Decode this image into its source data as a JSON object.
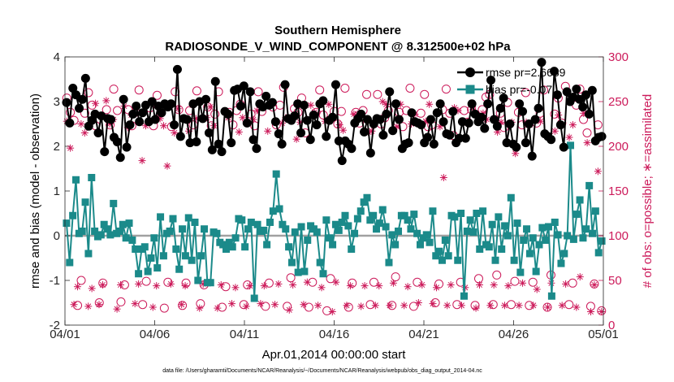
{
  "chart_data": {
    "type": "line",
    "title": "Southern Hemisphere",
    "subtitle": "RADIOSONDE_V_WIND_COMPONENT @ 8.312500e+02 hPa",
    "xlabel": "Apr.01,2014 00:00:00 start",
    "ylabel_left": "rmse and bias (model - observation)",
    "ylabel_right": "# of obs: o=possible; ∗=assimilated",
    "footnote": "data file: /Users/gharamti/Documents/NCAR/Reanalysis/~/Documents/NCAR/Reanalysis/webpub/obs_diag_output_2014-04.nc",
    "xlim": [
      0,
      30
    ],
    "ylim_left": [
      -2,
      4
    ],
    "ylim_right": [
      0,
      300
    ],
    "x_tick_values": [
      0,
      5,
      10,
      15,
      20,
      25,
      30
    ],
    "x_tick_labels": [
      "04/01",
      "04/06",
      "04/11",
      "04/16",
      "04/21",
      "04/26",
      "05/01"
    ],
    "y_left_ticks": [
      -2,
      -1,
      0,
      1,
      2,
      3,
      4
    ],
    "y_right_ticks": [
      0,
      50,
      100,
      150,
      200,
      250,
      300
    ],
    "zero_line": 0,
    "colors": {
      "rmse": "#000000",
      "bias": "#1b8a8a",
      "obs": "#cc1a5a",
      "zero": "#a0a0a0"
    },
    "series": [
      {
        "name": "rmse pr=2.6689",
        "axis": "left",
        "marker": "circle",
        "values": [
          2.98,
          2.52,
          3.3,
          3.15,
          2.85,
          3.05,
          3.52,
          2.45,
          2.58,
          2.72,
          2.3,
          2.68,
          1.88,
          2.62,
          2.6,
          2.2,
          2.1,
          1.75,
          3.05,
          1.98,
          2.48,
          2.72,
          2.9,
          2.55,
          2.75,
          2.92,
          2.55,
          3.0,
          2.6,
          2.9,
          2.75,
          2.95,
          2.88,
          2.95,
          2.48,
          3.72,
          2.22,
          2.62,
          2.6,
          2.08,
          2.95,
          2.1,
          3.0,
          2.62,
          3.05,
          2.3,
          1.92,
          3.45,
          2.05,
          1.88,
          2.78,
          2.72,
          2.08,
          3.25,
          3.28,
          2.9,
          3.35,
          2.52,
          3.22,
          2.15,
          1.95,
          2.95,
          2.88,
          3.12,
          2.92,
          2.98,
          2.55,
          2.28,
          2.05,
          3.38,
          2.62,
          2.58,
          2.68,
          2.95,
          2.3,
          2.92,
          2.58,
          2.15,
          2.7,
          2.48,
          2.95,
          3.02,
          2.22,
          2.58,
          2.65,
          3.38,
          2.12,
          1.68,
          2.12,
          2.05,
          1.95,
          2.52,
          2.62,
          2.72,
          2.32,
          2.6,
          1.85,
          2.5,
          2.62,
          2.6,
          2.25,
          2.72,
          3.22,
          2.35,
          2.95,
          2.6,
          1.95,
          2.05,
          2.08,
          2.75,
          2.55,
          2.52,
          2.48,
          2.08,
          2.2,
          2.6,
          2.05,
          2.75,
          2.95,
          2.55,
          2.28,
          2.25,
          2.78,
          2.08,
          2.18,
          2.55,
          2.18,
          2.52,
          2.95,
          2.72,
          2.55,
          2.65,
          2.4,
          2.95,
          3.48,
          2.6,
          2.45,
          2.85,
          3.08,
          2.08,
          2.5,
          2.05,
          1.98,
          2.95,
          2.78,
          2.08,
          2.5,
          1.78,
          2.6,
          2.85,
          3.88,
          2.28,
          2.22,
          2.15,
          3.68,
          3.15,
          2.48,
          1.98,
          3.22,
          3.0,
          3.1,
          3.28,
          3.05,
          2.88,
          3.15,
          2.72,
          3.25,
          2.12,
          2.2,
          2.22
        ]
      },
      {
        "name": "bias pr=-0.07...",
        "axis": "left",
        "marker": "square",
        "values": [
          0.28,
          -0.6,
          0.45,
          1.25,
          0.05,
          0.1,
          0.75,
          -0.4,
          1.3,
          0.1,
          -0.02,
          0.02,
          0.25,
          0.15,
          0.02,
          0.72,
          0.05,
          0.1,
          0.25,
          -0.05,
          0.28,
          -0.1,
          -0.3,
          -0.85,
          -0.3,
          -0.25,
          -0.8,
          -0.5,
          -0.05,
          -0.72,
          0.42,
          -0.45,
          0.05,
          0.1,
          0.38,
          -0.3,
          -0.75,
          0.15,
          -0.45,
          0.4,
          -0.55,
          0.3,
          -1.0,
          -0.45,
          0.15,
          -1.05,
          -1.05,
          0.08,
          0.05,
          -0.15,
          -0.2,
          -0.3,
          -0.15,
          -0.25,
          -0.05,
          0.38,
          0.35,
          -0.25,
          0.15,
          0.3,
          -1.4,
          0.25,
          0.1,
          0.12,
          -0.2,
          0.3,
          0.55,
          1.38,
          0.6,
          0.25,
          0.15,
          -0.25,
          -0.6,
          0.08,
          -0.82,
          0.2,
          -0.8,
          -0.1,
          0.22,
          0.15,
          0.08,
          -0.6,
          -0.85,
          0.35,
          -0.05,
          -0.2,
          0.25,
          0.12,
          0.3,
          0.45,
          0.22,
          -0.3,
          0.05,
          0.38,
          0.55,
          0.75,
          0.85,
          0.35,
          0.45,
          0.15,
          0.28,
          0.58,
          0.2,
          -0.6,
          0.02,
          -0.2,
          0.1,
          0.45,
          0.45,
          0.35,
          0.15,
          0.48,
          0.05,
          -0.2,
          -0.05,
          0.02,
          -0.15,
          0.55,
          -0.45,
          -0.35,
          -0.55,
          -0.1,
          -0.45,
          0.45,
          0.42,
          -0.55,
          0.5,
          -1.35,
          0.1,
          0.35,
          0.08,
          0.5,
          -0.3,
          0.55,
          -0.2,
          -0.25,
          0.25,
          -0.55,
          0.42,
          -0.3,
          0.22,
          0.0,
          0.85,
          -0.55,
          0.28,
          -0.82,
          -0.1,
          0.15,
          -0.4,
          -0.05,
          -0.8,
          -0.2,
          0.18,
          -0.1,
          0.2,
          -1.35,
          0.3,
          0.02,
          -0.62,
          -0.4,
          0.0,
          2.02,
          -0.08,
          0.48,
          0.8,
          -0.05,
          0.15,
          1.12,
          0.05,
          0.55,
          -0.38,
          -0.12
        ]
      },
      {
        "name": "possible",
        "axis": "right",
        "marker": "open-circle",
        "values": [
          254,
          238,
          229,
          22,
          50,
          237,
          260,
          246,
          223,
          25,
          47,
          241,
          224,
          264,
          240,
          26,
          45,
          241,
          223,
          238,
          263,
          23,
          49,
          243,
          223,
          257,
          237,
          19,
          48,
          222,
          261,
          241,
          22,
          47,
          240,
          224,
          262,
          24,
          45,
          244,
          223,
          236,
          261,
          20,
          43,
          238,
          224,
          240,
          247,
          23,
          45,
          236,
          223,
          261,
          239,
          21,
          47,
          244,
          224,
          246,
          266,
          21,
          53,
          242,
          238,
          254,
          215,
          20,
          48,
          238,
          263,
          235,
          16,
          52,
          239,
          225,
          239,
          265,
          20,
          47,
          238,
          226,
          240,
          258,
          23,
          48,
          258,
          225,
          232,
          240,
          22,
          54,
          238,
          222,
          240,
          265,
          21,
          48,
          237,
          258,
          222,
          224,
          25,
          46,
          241,
          264,
          237,
          212,
          23,
          48,
          240,
          227,
          241,
          22,
          52,
          241,
          255,
          258,
          23,
          56,
          237,
          221,
          249,
          23,
          49,
          238,
          224,
          260,
          22,
          48,
          226,
          237,
          263,
          20,
          56,
          236,
          254,
          226,
          267,
          23,
          47,
          246,
          264,
          230,
          215,
          21,
          46,
          224,
          16
        ]
      },
      {
        "name": "assimilated",
        "axis": "right",
        "marker": "asterisk",
        "values": [
          228,
          198,
          23,
          43,
          225,
          215,
          21,
          41,
          248,
          23,
          45,
          251,
          225,
          230,
          18,
          45,
          245,
          221,
          235,
          24,
          46,
          184,
          223,
          228,
          20,
          44,
          231,
          223,
          178,
          46,
          215,
          242,
          23,
          44,
          217,
          246,
          231,
          19,
          46,
          232,
          244,
          223,
          19,
          45,
          238,
          232,
          24,
          42,
          216,
          232,
          21,
          44,
          230,
          240,
          24,
          44,
          217,
          247,
          23,
          46,
          226,
          232,
          17,
          45,
          208,
          227,
          23,
          48,
          246,
          238,
          22,
          42,
          228,
          247,
          15,
          48,
          224,
          218,
          22,
          44,
          236,
          236,
          21,
          44,
          216,
          217,
          22,
          44,
          250,
          247,
          22,
          47,
          222,
          247,
          22,
          43,
          225,
          236,
          25,
          45,
          228,
          247,
          24,
          42,
          222,
          165,
          22,
          45,
          243,
          240,
          22,
          42,
          226,
          244,
          19,
          45,
          237,
          230,
          22,
          45,
          216,
          227,
          22,
          44,
          227,
          192,
          22,
          47,
          227,
          224,
          22,
          40,
          228,
          214,
          20,
          47,
          217,
          235,
          22,
          46,
          210,
          224,
          20,
          54,
          237,
          204,
          15,
          45,
          172,
          15
        ]
      }
    ]
  }
}
